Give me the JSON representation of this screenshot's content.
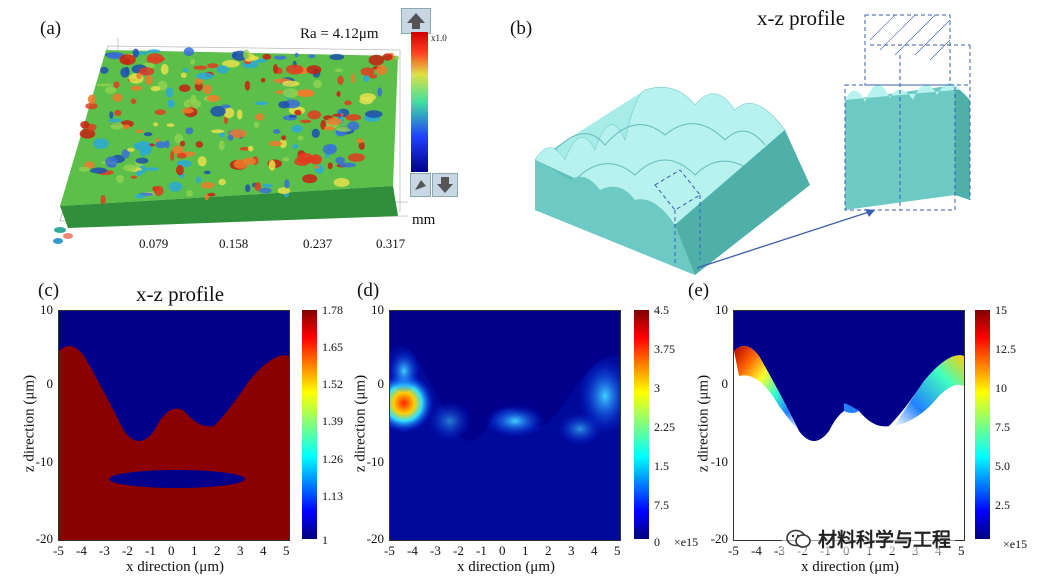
{
  "panel_a": {
    "label": "(a)",
    "ra": "Ra = 4.12μm",
    "unit": "mm",
    "ticks": [
      "0.079",
      "0.158",
      "0.237",
      "0.317"
    ],
    "scale_tag": "x1.0"
  },
  "panel_b": {
    "label": "(b)",
    "profile_title": "x-z profile"
  },
  "panel_c": {
    "label": "(c)",
    "title": "x-z profile",
    "xlabel": "x direction (μm)",
    "ylabel": "z direction (μm)",
    "xticks": [
      "-5",
      "-4",
      "-3",
      "-2",
      "-1",
      "0",
      "1",
      "2",
      "3",
      "4",
      "5"
    ],
    "yticks": [
      "10",
      "0",
      "-10",
      "-20"
    ],
    "cbar": [
      "1.78",
      "1.65",
      "1.52",
      "1.39",
      "1.26",
      "1.13",
      "1"
    ]
  },
  "panel_d": {
    "label": "(d)",
    "xlabel": "x direction (μm)",
    "ylabel": "z direction (μm)",
    "xticks": [
      "-5",
      "-4",
      "-3",
      "-2",
      "-1",
      "0",
      "1",
      "2",
      "3",
      "4",
      "5"
    ],
    "yticks": [
      "10",
      "0",
      "-10",
      "-20"
    ],
    "cbar": [
      "4.5",
      "3.75",
      "3",
      "2.25",
      "1.5",
      "7.5",
      "0"
    ],
    "exp": "×e15"
  },
  "panel_e": {
    "label": "(e)",
    "xlabel": "x direction (μm)",
    "ylabel": "z direction (μm)",
    "xticks": [
      "-5",
      "-4",
      "-3",
      "-2",
      "-1",
      "0",
      "1",
      "2",
      "3",
      "4",
      "5"
    ],
    "yticks": [
      "10",
      "0",
      "-10",
      "-20"
    ],
    "cbar": [
      "15",
      "12.5",
      "10",
      "7.5",
      "5.0",
      "2.5"
    ],
    "exp": "×e15"
  },
  "watermark": "材料科学与工程",
  "colors": {
    "jet_dark": "#00008b",
    "jet_red": "#8b0000",
    "teal": "#7fd6d2"
  }
}
